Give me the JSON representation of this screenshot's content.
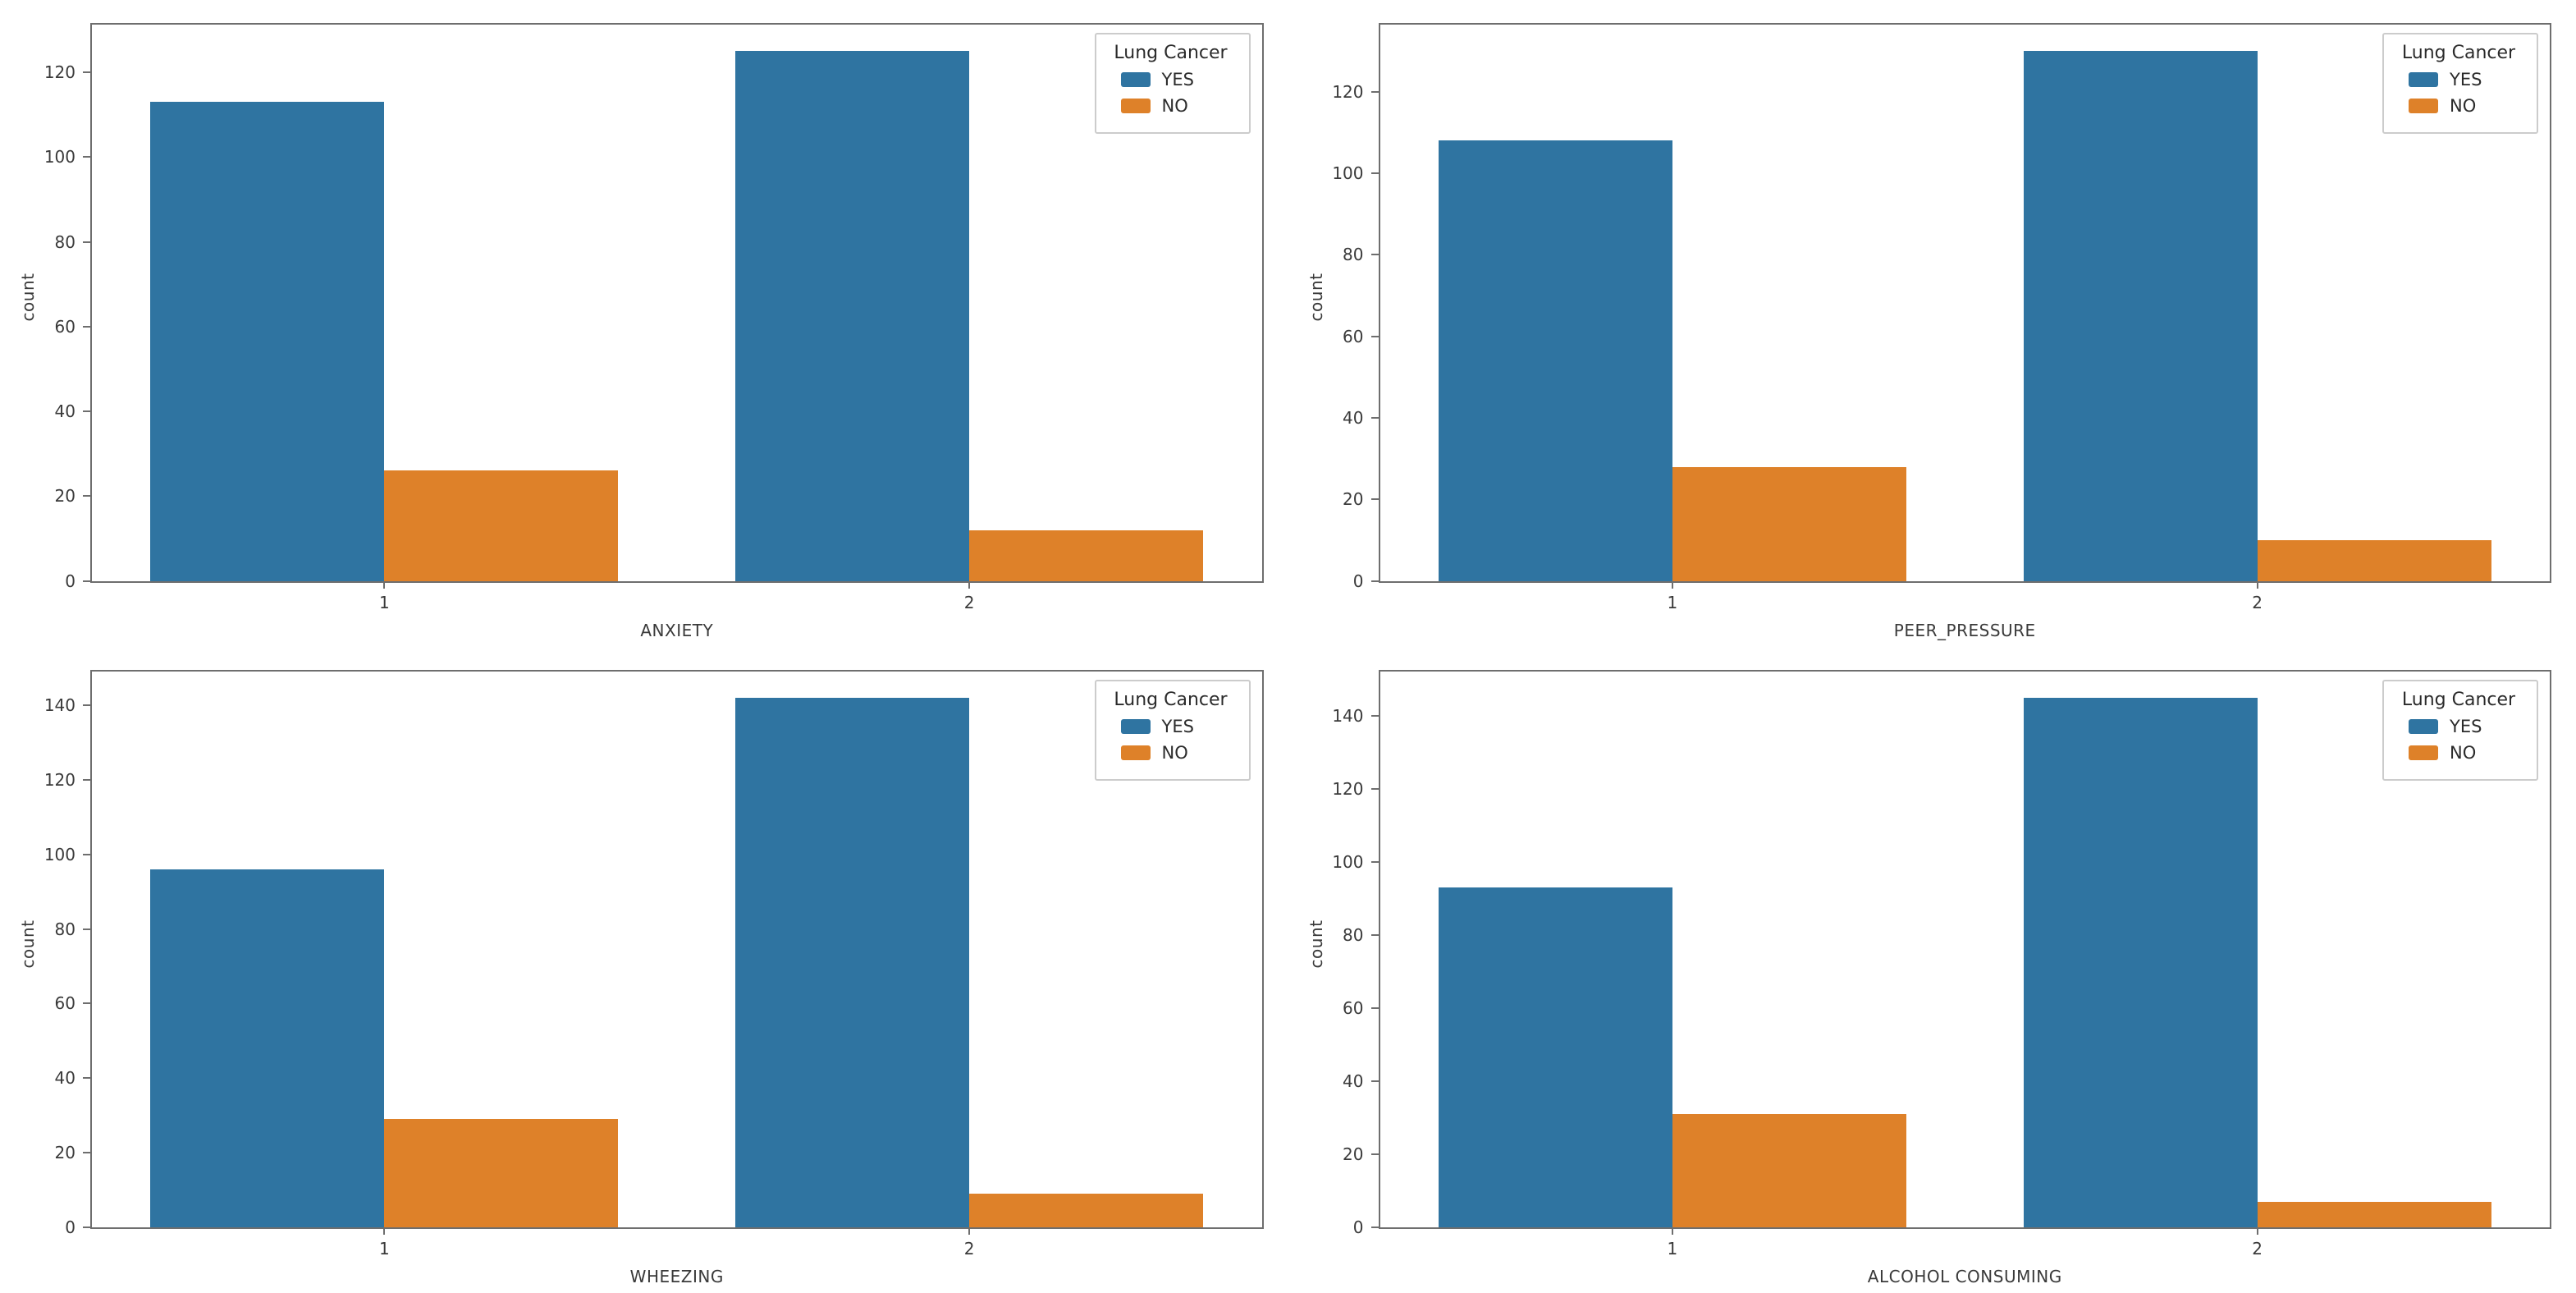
{
  "figure": {
    "background": "#ffffff",
    "layout": "2x2-grid"
  },
  "colors": {
    "series": [
      "#2f74a1",
      "#de8129"
    ],
    "spine": "#6e6e6e",
    "text": "#3a3a3a",
    "legend_border": "#cccccc"
  },
  "legend": {
    "title": "Lung Cancer",
    "position": "upper right",
    "entries": [
      {
        "label": "YES",
        "color": "#2f74a1"
      },
      {
        "label": "NO",
        "color": "#de8129"
      }
    ]
  },
  "chart_data": [
    {
      "type": "bar",
      "title": "",
      "xlabel": "ANXIETY",
      "ylabel": "count",
      "categories": [
        "1",
        "2"
      ],
      "series": [
        {
          "name": "YES",
          "values": [
            113,
            125
          ]
        },
        {
          "name": "NO",
          "values": [
            26,
            12
          ]
        }
      ],
      "yticks": [
        0,
        20,
        40,
        60,
        80,
        100,
        120
      ],
      "ylim": [
        0,
        131.25
      ],
      "grid": false,
      "legend_title": "Lung Cancer",
      "legend_position": "upper right"
    },
    {
      "type": "bar",
      "title": "",
      "xlabel": "PEER_PRESSURE",
      "ylabel": "count",
      "categories": [
        "1",
        "2"
      ],
      "series": [
        {
          "name": "YES",
          "values": [
            108,
            130
          ]
        },
        {
          "name": "NO",
          "values": [
            28,
            10
          ]
        }
      ],
      "yticks": [
        0,
        20,
        40,
        60,
        80,
        100,
        120
      ],
      "ylim": [
        0,
        136.5
      ],
      "grid": false,
      "legend_title": "Lung Cancer",
      "legend_position": "upper right"
    },
    {
      "type": "bar",
      "title": "",
      "xlabel": "WHEEZING",
      "ylabel": "count",
      "categories": [
        "1",
        "2"
      ],
      "series": [
        {
          "name": "YES",
          "values": [
            96,
            142
          ]
        },
        {
          "name": "NO",
          "values": [
            29,
            9
          ]
        }
      ],
      "yticks": [
        0,
        20,
        40,
        60,
        80,
        100,
        120,
        140
      ],
      "ylim": [
        0,
        149.1
      ],
      "grid": false,
      "legend_title": "Lung Cancer",
      "legend_position": "upper right"
    },
    {
      "type": "bar",
      "title": "",
      "xlabel": "ALCOHOL CONSUMING",
      "ylabel": "count",
      "categories": [
        "1",
        "2"
      ],
      "series": [
        {
          "name": "YES",
          "values": [
            93,
            145
          ]
        },
        {
          "name": "NO",
          "values": [
            31,
            7
          ]
        }
      ],
      "yticks": [
        0,
        20,
        40,
        60,
        80,
        100,
        120,
        140
      ],
      "ylim": [
        0,
        152.25
      ],
      "grid": false,
      "legend_title": "Lung Cancer",
      "legend_position": "upper right"
    }
  ]
}
